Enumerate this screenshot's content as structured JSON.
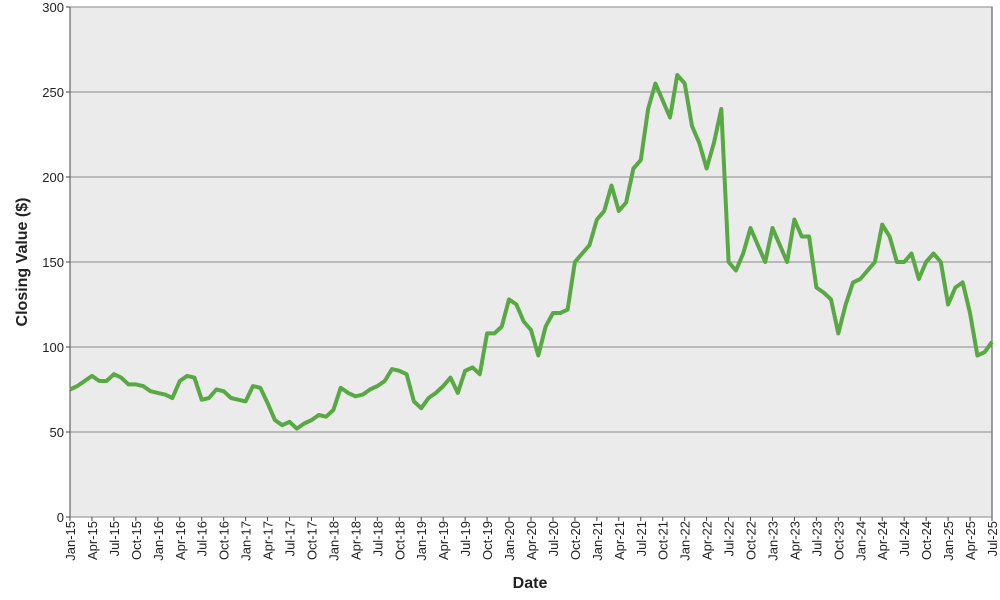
{
  "chart_data": {
    "type": "line",
    "x_label": "Date",
    "y_label": "Closing Value ($)",
    "x": [
      "2015-01",
      "2015-02",
      "2015-03",
      "2015-04",
      "2015-05",
      "2015-06",
      "2015-07",
      "2015-08",
      "2015-09",
      "2015-10",
      "2015-11",
      "2015-12",
      "2016-01",
      "2016-02",
      "2016-03",
      "2016-04",
      "2016-05",
      "2016-06",
      "2016-07",
      "2016-08",
      "2016-09",
      "2016-10",
      "2016-11",
      "2016-12",
      "2017-01",
      "2017-02",
      "2017-03",
      "2017-04",
      "2017-05",
      "2017-06",
      "2017-07",
      "2017-08",
      "2017-09",
      "2017-10",
      "2017-11",
      "2017-12",
      "2018-01",
      "2018-02",
      "2018-03",
      "2018-04",
      "2018-05",
      "2018-06",
      "2018-07",
      "2018-08",
      "2018-09",
      "2018-10",
      "2018-11",
      "2018-12",
      "2019-01",
      "2019-02",
      "2019-03",
      "2019-04",
      "2019-05",
      "2019-06",
      "2019-07",
      "2019-08",
      "2019-09",
      "2019-10",
      "2019-11",
      "2019-12",
      "2020-01",
      "2020-02",
      "2020-03",
      "2020-04",
      "2020-05",
      "2020-06",
      "2020-07",
      "2020-08",
      "2020-09",
      "2020-10",
      "2020-11",
      "2020-12",
      "2021-01",
      "2021-02",
      "2021-03",
      "2021-04",
      "2021-05",
      "2021-06",
      "2021-07",
      "2021-08",
      "2021-09",
      "2021-10",
      "2021-11",
      "2021-12",
      "2022-01",
      "2022-02",
      "2022-03",
      "2022-04",
      "2022-05",
      "2022-06",
      "2022-07",
      "2022-08",
      "2022-09",
      "2022-10",
      "2022-11",
      "2022-12",
      "2023-01",
      "2023-02",
      "2023-03",
      "2023-04",
      "2023-05",
      "2023-06",
      "2023-07",
      "2023-08",
      "2023-09",
      "2023-10",
      "2023-11",
      "2023-12",
      "2024-01",
      "2024-02",
      "2024-03",
      "2024-04",
      "2024-05",
      "2024-06",
      "2024-07",
      "2024-08",
      "2024-09",
      "2024-10",
      "2024-11",
      "2024-12",
      "2025-01",
      "2025-02",
      "2025-03",
      "2025-04",
      "2025-05",
      "2025-06",
      "2025-07"
    ],
    "series": [
      {
        "color": "#58a943",
        "values": [
          75,
          77,
          80,
          83,
          80,
          80,
          84,
          82,
          78,
          78,
          77,
          74,
          73,
          72,
          70,
          80,
          83,
          82,
          69,
          70,
          75,
          74,
          70,
          69,
          68,
          77,
          76,
          67,
          57,
          54,
          56,
          52,
          55,
          57,
          60,
          59,
          63,
          76,
          73,
          71,
          72,
          75,
          77,
          80,
          87,
          86,
          84,
          68,
          64,
          70,
          73,
          77,
          82,
          73,
          86,
          88,
          84,
          108,
          108,
          112,
          128,
          125,
          115,
          110,
          95,
          112,
          120,
          120,
          122,
          150,
          155,
          160,
          175,
          180,
          195,
          180,
          185,
          205,
          210,
          240,
          255,
          245,
          235,
          260,
          255,
          230,
          220,
          205,
          220,
          240,
          150,
          145,
          155,
          170,
          160,
          150,
          170,
          160,
          150,
          175,
          165,
          165,
          135,
          132,
          128,
          108,
          125,
          138,
          140,
          145,
          150,
          172,
          165,
          150,
          150,
          155,
          140,
          150,
          155,
          150,
          125,
          135,
          138,
          120,
          95,
          97,
          103
        ]
      }
    ],
    "xlim": [
      "2015-01",
      "2025-07"
    ],
    "xticks": [
      {
        "value": "2015-01",
        "label": "Jan-15"
      },
      {
        "value": "2015-04",
        "label": "Apr-15"
      },
      {
        "value": "2015-07",
        "label": "Jul-15"
      },
      {
        "value": "2015-10",
        "label": "Oct-15"
      },
      {
        "value": "2016-01",
        "label": "Jan-16"
      },
      {
        "value": "2016-04",
        "label": "Apr-16"
      },
      {
        "value": "2016-07",
        "label": "Jul-16"
      },
      {
        "value": "2016-10",
        "label": "Oct-16"
      },
      {
        "value": "2017-01",
        "label": "Jan-17"
      },
      {
        "value": "2017-04",
        "label": "Apr-17"
      },
      {
        "value": "2017-07",
        "label": "Jul-17"
      },
      {
        "value": "2017-10",
        "label": "Oct-17"
      },
      {
        "value": "2018-01",
        "label": "Jan-18"
      },
      {
        "value": "2018-04",
        "label": "Apr-18"
      },
      {
        "value": "2018-07",
        "label": "Jul-18"
      },
      {
        "value": "2018-10",
        "label": "Oct-18"
      },
      {
        "value": "2019-01",
        "label": "Jan-19"
      },
      {
        "value": "2019-04",
        "label": "Apr-19"
      },
      {
        "value": "2019-07",
        "label": "Jul-19"
      },
      {
        "value": "2019-10",
        "label": "Oct-19"
      },
      {
        "value": "2020-01",
        "label": "Jan-20"
      },
      {
        "value": "2020-04",
        "label": "Apr-20"
      },
      {
        "value": "2020-07",
        "label": "Jul-20"
      },
      {
        "value": "2020-10",
        "label": "Oct-20"
      },
      {
        "value": "2021-01",
        "label": "Jan-21"
      },
      {
        "value": "2021-04",
        "label": "Apr-21"
      },
      {
        "value": "2021-07",
        "label": "Jul-21"
      },
      {
        "value": "2021-10",
        "label": "Oct-21"
      },
      {
        "value": "2022-01",
        "label": "Jan-22"
      },
      {
        "value": "2022-04",
        "label": "Apr-22"
      },
      {
        "value": "2022-07",
        "label": "Jul-22"
      },
      {
        "value": "2022-10",
        "label": "Oct-22"
      },
      {
        "value": "2023-01",
        "label": "Jan-23"
      },
      {
        "value": "2023-04",
        "label": "Apr-23"
      },
      {
        "value": "2023-07",
        "label": "Jul-23"
      },
      {
        "value": "2023-10",
        "label": "Oct-23"
      },
      {
        "value": "2024-01",
        "label": "Jan-24"
      },
      {
        "value": "2024-04",
        "label": "Apr-24"
      },
      {
        "value": "2024-07",
        "label": "Jul-24"
      },
      {
        "value": "2024-10",
        "label": "Oct-24"
      },
      {
        "value": "2025-01",
        "label": "Jan-25"
      },
      {
        "value": "2025-04",
        "label": "Apr-25"
      },
      {
        "value": "2025-07",
        "label": "Jul-25"
      }
    ],
    "ylim": [
      0,
      300
    ],
    "yticks": [
      0,
      50,
      100,
      150,
      200,
      250,
      300
    ],
    "grid": true
  }
}
